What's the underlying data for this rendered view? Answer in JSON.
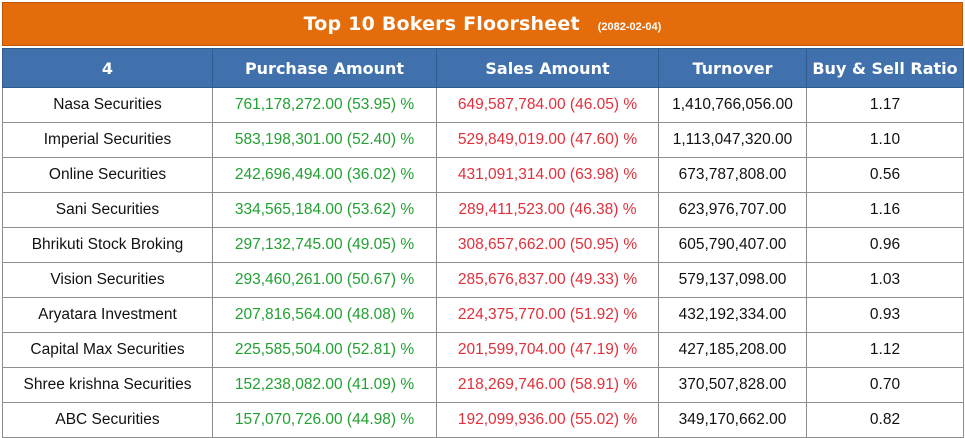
{
  "title": "Top 10 Bokers Floorsheet",
  "date": "(2082-02-04)",
  "columns": [
    "4",
    "Purchase Amount",
    "Sales Amount",
    "Turnover",
    "Buy & Sell Ratio"
  ],
  "colors": {
    "header_bar": "#e46c0a",
    "column_header": "#4071ad",
    "buy_text": "#22a032",
    "sell_text": "#e0303b"
  },
  "rows": [
    {
      "broker": "Nasa Securities",
      "purchase": "761,178,272.00 (53.95) %",
      "sales": "649,587,784.00 (46.05) %",
      "turnover": "1,410,766,056.00",
      "ratio": "1.17"
    },
    {
      "broker": "Imperial Securities",
      "purchase": "583,198,301.00 (52.40) %",
      "sales": "529,849,019.00 (47.60) %",
      "turnover": "1,113,047,320.00",
      "ratio": "1.10"
    },
    {
      "broker": "Online Securities",
      "purchase": "242,696,494.00 (36.02) %",
      "sales": "431,091,314.00 (63.98) %",
      "turnover": "673,787,808.00",
      "ratio": "0.56"
    },
    {
      "broker": "Sani Securities",
      "purchase": "334,565,184.00 (53.62) %",
      "sales": "289,411,523.00 (46.38) %",
      "turnover": "623,976,707.00",
      "ratio": "1.16"
    },
    {
      "broker": "Bhrikuti Stock Broking",
      "purchase": "297,132,745.00 (49.05) %",
      "sales": "308,657,662.00 (50.95) %",
      "turnover": "605,790,407.00",
      "ratio": "0.96"
    },
    {
      "broker": "Vision Securities",
      "purchase": "293,460,261.00 (50.67) %",
      "sales": "285,676,837.00 (49.33) %",
      "turnover": "579,137,098.00",
      "ratio": "1.03"
    },
    {
      "broker": "Aryatara Investment",
      "purchase": "207,816,564.00 (48.08) %",
      "sales": "224,375,770.00 (51.92) %",
      "turnover": "432,192,334.00",
      "ratio": "0.93"
    },
    {
      "broker": "Capital Max Securities",
      "purchase": "225,585,504.00 (52.81) %",
      "sales": "201,599,704.00 (47.19) %",
      "turnover": "427,185,208.00",
      "ratio": "1.12"
    },
    {
      "broker": "Shree krishna Securities",
      "purchase": "152,238,082.00 (41.09) %",
      "sales": "218,269,746.00 (58.91) %",
      "turnover": "370,507,828.00",
      "ratio": "0.70"
    },
    {
      "broker": "ABC Securities",
      "purchase": "157,070,726.00 (44.98) %",
      "sales": "192,099,936.00 (55.02) %",
      "turnover": "349,170,662.00",
      "ratio": "0.82"
    }
  ]
}
